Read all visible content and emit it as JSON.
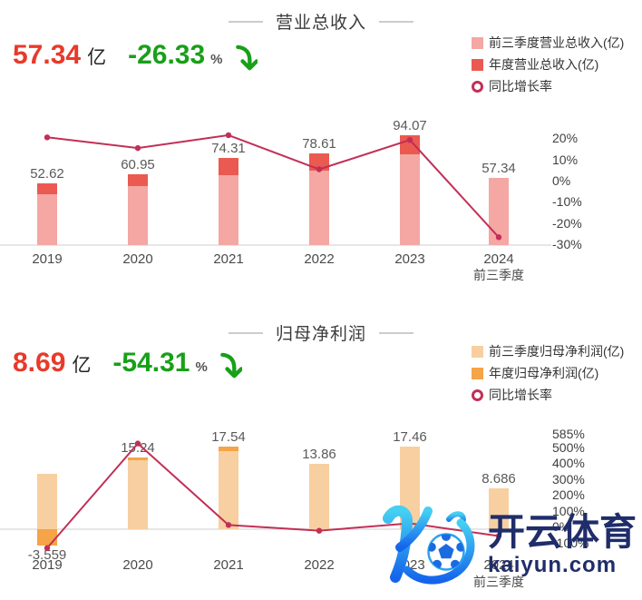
{
  "sections": [
    {
      "stat": {
        "value": "57.34",
        "unit": "亿",
        "change": "-26.33",
        "percent": "%"
      }
    },
    {
      "stat": {
        "value": "8.69",
        "unit": "亿",
        "change": "-54.31",
        "percent": "%"
      }
    }
  ],
  "chart_data": [
    {
      "type": "bar-line",
      "title": "营业总收入",
      "categories": [
        "2019",
        "2020",
        "2021",
        "2022",
        "2023",
        "2024"
      ],
      "last_category_note": "前三季度",
      "bar_value_labels": [
        "52.62",
        "60.95",
        "74.31",
        "78.61",
        "94.07",
        "57.34"
      ],
      "series": [
        {
          "name": "前三季度营业总收入(亿)",
          "kind": "bar",
          "color": "#f4a7a3",
          "values": [
            43.5,
            50.3,
            59.9,
            63.8,
            77.8,
            57.34
          ]
        },
        {
          "name": "年度营业总收入(亿)",
          "kind": "bar",
          "color": "#ea5a50",
          "values": [
            52.62,
            60.95,
            74.31,
            78.61,
            94.07,
            null
          ]
        },
        {
          "name": "同比增长率",
          "kind": "line",
          "color": "#c22f56",
          "values_pct": [
            20.9,
            15.83,
            21.92,
            5.79,
            19.66,
            -26.33
          ]
        }
      ],
      "right_axis": {
        "tick_labels": [
          "20%",
          "10%",
          "0%",
          "-10%",
          "-20%",
          "-30%"
        ],
        "tick_values": [
          20,
          10,
          0,
          -10,
          -20,
          -30
        ]
      },
      "ylim_bars": [
        0,
        100
      ],
      "ylim_pct": [
        -30,
        20
      ],
      "grid": false,
      "legend_position": "top-right"
    },
    {
      "type": "bar-line",
      "title": "归母净利润",
      "categories": [
        "2019",
        "2020",
        "2021",
        "2022",
        "2023",
        "2024"
      ],
      "last_category_note": "前三季度",
      "bar_value_labels": [
        "-3.559",
        "15.24",
        "17.54",
        "13.86",
        "17.46",
        "8.686"
      ],
      "series": [
        {
          "name": "前三季度归母净利润(亿)",
          "kind": "bar",
          "color": "#f8cfa0",
          "values": [
            11.75,
            14.6,
            16.6,
            13.86,
            17.46,
            8.686
          ]
        },
        {
          "name": "年度归母净利润(亿)",
          "kind": "bar",
          "color": "#f5a447",
          "values": [
            -3.559,
            15.24,
            17.54,
            13.86,
            17.46,
            null
          ]
        },
        {
          "name": "同比增长率",
          "kind": "line",
          "color": "#c22f56",
          "values_pct": [
            -130,
            528,
            15.1,
            -21,
            26,
            -54.31
          ]
        }
      ],
      "right_axis": {
        "tick_labels": [
          "585%",
          "500%",
          "400%",
          "300%",
          "200%",
          "100%",
          "0%",
          "-100%"
        ],
        "tick_values": [
          585,
          500,
          400,
          300,
          200,
          100,
          0,
          -100
        ]
      },
      "ylim_bars": [
        -5,
        20
      ],
      "ylim_pct": [
        -100,
        585
      ],
      "grid": false,
      "legend_position": "top-right"
    }
  ],
  "watermark": {
    "brand": "开云体育",
    "domain": "kaiyun.com"
  },
  "colors": {
    "stat_value": "#e83a2a",
    "stat_change": "#18a018",
    "arrow_green": "#18a018",
    "line": "#c22f56",
    "axis_text": "#404040",
    "label_text": "#595959",
    "watermark_navy": "#1f2d6a",
    "logo_gradient_top": "#45d0f2",
    "logo_gradient_bottom": "#1565ec"
  }
}
